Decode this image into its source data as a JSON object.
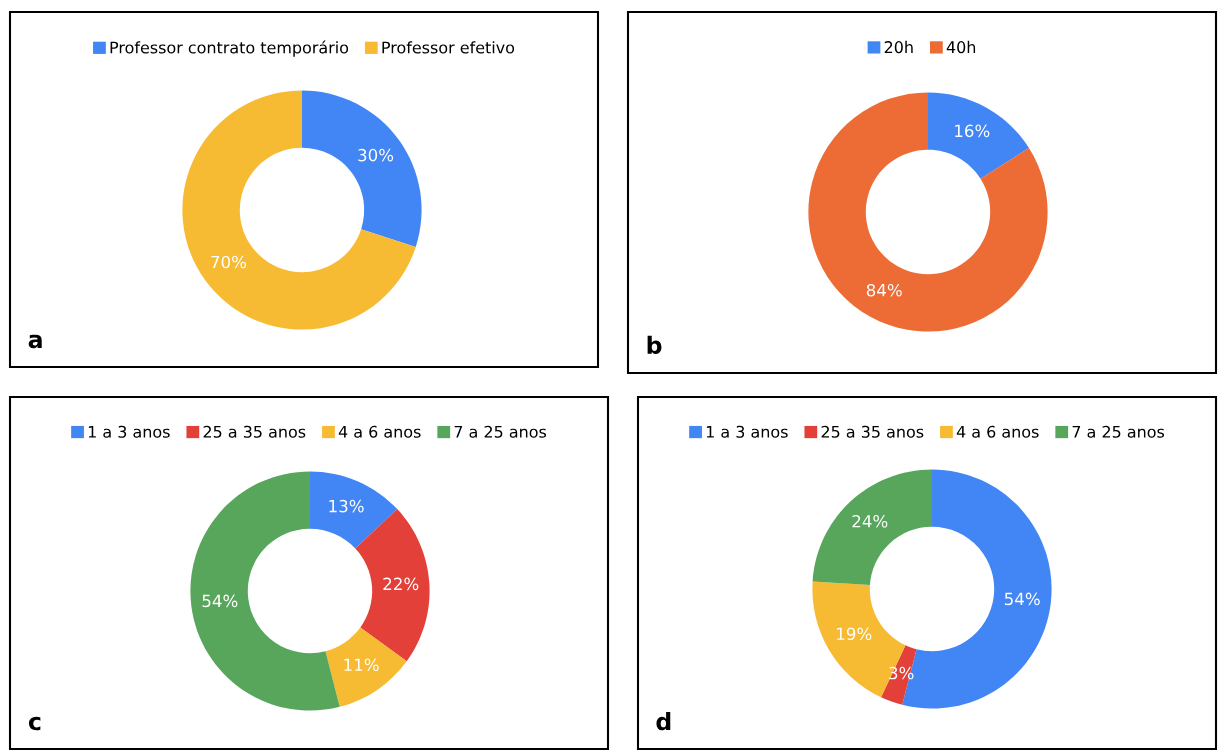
{
  "chart_data": [
    {
      "type": "donut",
      "categories": [
        "Professor contrato temporário",
        "Professor efetivo"
      ],
      "values": [
        30,
        70
      ],
      "colors": [
        "#4285f4",
        "#f6bb33"
      ],
      "value_labels": [
        "30%",
        "70%"
      ],
      "legend": "top",
      "annotations": [
        "a"
      ]
    },
    {
      "type": "donut",
      "categories": [
        "20h",
        "40h"
      ],
      "values": [
        16,
        84
      ],
      "colors": [
        "#4285f4",
        "#ed6b35"
      ],
      "value_labels": [
        "16%",
        "84%"
      ],
      "legend": "top",
      "annotations": [
        "b"
      ]
    },
    {
      "type": "donut",
      "categories": [
        "1 a 3 anos",
        "25 a 35 anos",
        "4 a 6 anos",
        "7 a 25 anos"
      ],
      "values": [
        13,
        22,
        11,
        54
      ],
      "colors": [
        "#4285f4",
        "#e4403a",
        "#f6bb33",
        "#58a65c"
      ],
      "value_labels": [
        "13%",
        "22%",
        "11%",
        "54%"
      ],
      "legend": "top",
      "annotations": [
        "c"
      ]
    },
    {
      "type": "donut",
      "categories": [
        "1 a 3 anos",
        "25 a 35 anos",
        "4 a 6 anos",
        "7 a 25 anos"
      ],
      "values": [
        54,
        3,
        19,
        24
      ],
      "colors": [
        "#4285f4",
        "#e4403a",
        "#f6bb33",
        "#58a65c"
      ],
      "value_labels": [
        "54%",
        "3%",
        "19%",
        "24%"
      ],
      "legend": "top",
      "annotations": [
        "d"
      ]
    }
  ]
}
